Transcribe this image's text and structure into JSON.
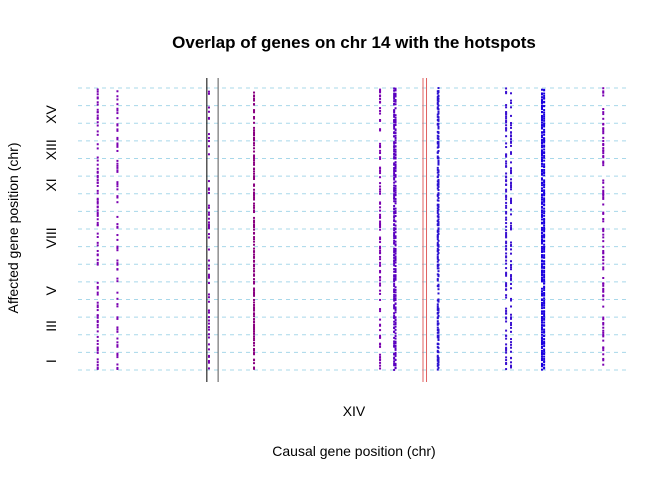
{
  "chart_data": {
    "type": "scatter",
    "title": "Overlap of genes on chr 14 with the hotspots",
    "xlabel": "Causal gene position (chr)",
    "ylabel": "Affected gene position (chr)",
    "x_tick_labels": [
      "XIV"
    ],
    "y_tick_labels": [
      "I",
      "III",
      "V",
      "VIII",
      "XI",
      "XIII",
      "XV"
    ],
    "y_chromosome_boundaries": [
      1,
      2,
      3,
      4,
      5,
      6,
      7,
      8,
      9,
      10,
      11,
      12,
      13,
      14,
      15,
      16
    ],
    "x_range": [
      0,
      784
    ],
    "y_range": [
      0,
      16
    ],
    "grid": true,
    "grid_style": "dashed horizontal lines at chromosome boundaries",
    "hotspot_lines": [
      {
        "x": 183,
        "color": "#000000"
      },
      {
        "x": 199,
        "color": "#555555"
      },
      {
        "x": 490,
        "color": "#e06060"
      },
      {
        "x": 495,
        "color": "#e06060"
      }
    ],
    "gene_columns": [
      {
        "x": 28,
        "color": "#7a00b0",
        "density": 0.55
      },
      {
        "x": 56,
        "color": "#7a00b0",
        "density": 0.45
      },
      {
        "x": 186,
        "color": "#7a00b0",
        "density": 0.35
      },
      {
        "x": 250,
        "color": "#8a0080",
        "density": 0.9
      },
      {
        "x": 429,
        "color": "#7a00b0",
        "density": 0.6
      },
      {
        "x": 449,
        "color": "#5a00c0",
        "density": 0.85
      },
      {
        "x": 451,
        "color": "#5a00c0",
        "density": 0.85
      },
      {
        "x": 511,
        "color": "#2a10d0",
        "density": 0.7
      },
      {
        "x": 512,
        "color": "#2a10d0",
        "density": 0.7
      },
      {
        "x": 608,
        "color": "#3a10d0",
        "density": 0.65
      },
      {
        "x": 615,
        "color": "#3a10d0",
        "density": 0.5
      },
      {
        "x": 659,
        "color": "#1a00e0",
        "density": 0.95
      },
      {
        "x": 662,
        "color": "#1a00e0",
        "density": 0.95
      },
      {
        "x": 746,
        "color": "#7a00b0",
        "density": 0.6
      }
    ],
    "colors": {
      "grid": "#a8d8ea",
      "text": "#000000"
    }
  }
}
